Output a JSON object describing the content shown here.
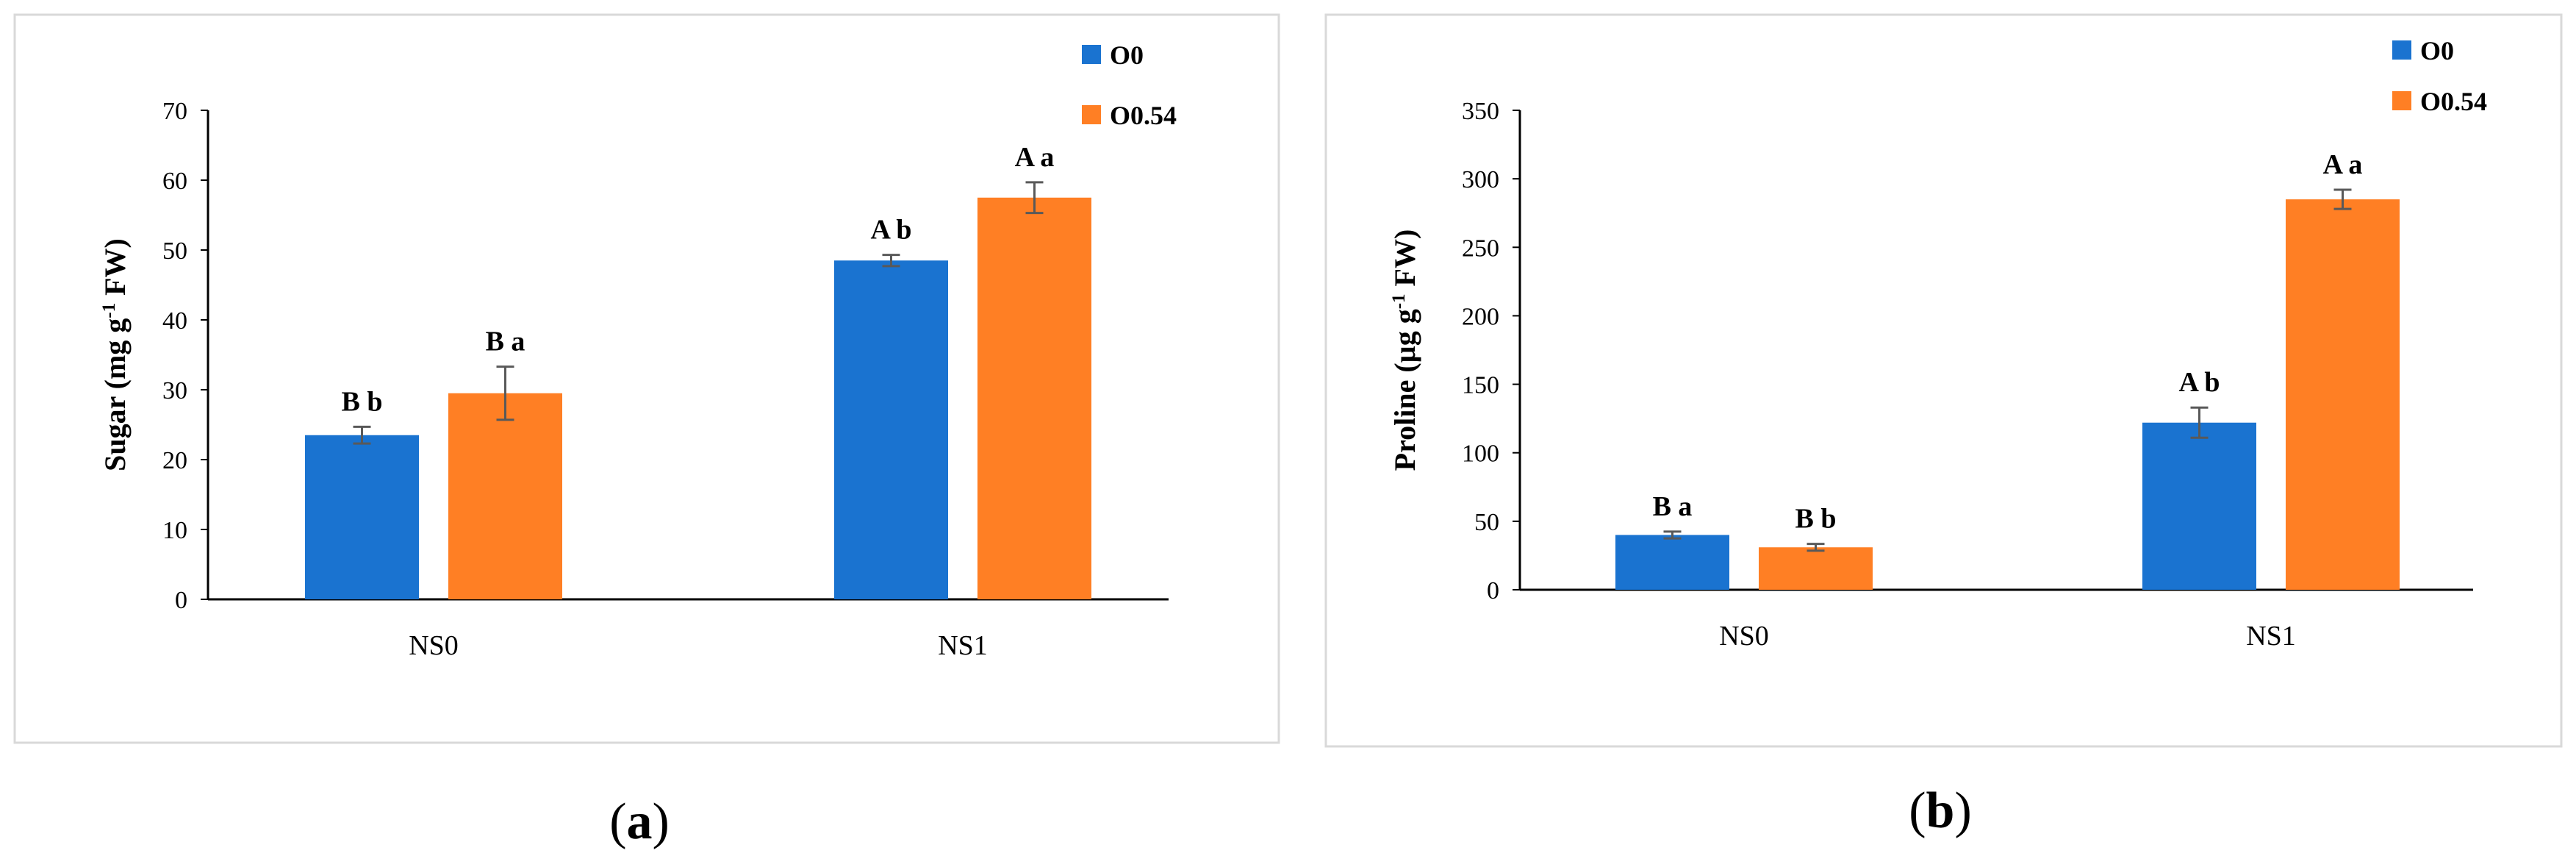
{
  "chart_data": [
    {
      "type": "bar",
      "panel": "(a)",
      "caption_letter": "a",
      "ylabel_parts": [
        "Sugar (mg g",
        "-1",
        " FW)"
      ],
      "categories": [
        "NS0",
        "NS1"
      ],
      "ylim": [
        0,
        70
      ],
      "yticks": [
        0,
        10,
        20,
        30,
        40,
        50,
        60,
        70
      ],
      "legend_position": "top-right",
      "series": [
        {
          "name": "O0",
          "color": "#1a73d0",
          "values": [
            23.5,
            48.5
          ],
          "errors": [
            1.2,
            0.8
          ],
          "labels": [
            "B b",
            "A b"
          ]
        },
        {
          "name": "O0.54",
          "color": "#ff7f24",
          "values": [
            29.5,
            57.5
          ],
          "errors": [
            3.8,
            2.2
          ],
          "labels": [
            "B a",
            "A a"
          ]
        }
      ]
    },
    {
      "type": "bar",
      "panel": "(b)",
      "caption_letter": "b",
      "ylabel_parts": [
        "Proline (µg g",
        "-1",
        " FW)"
      ],
      "categories": [
        "NS0",
        "NS1"
      ],
      "ylim": [
        0,
        350
      ],
      "yticks": [
        0,
        50,
        100,
        150,
        200,
        250,
        300,
        350
      ],
      "legend_position": "top-right",
      "series": [
        {
          "name": "O0",
          "color": "#1a73d0",
          "values": [
            40,
            122
          ],
          "errors": [
            2.5,
            11
          ],
          "labels": [
            "B a",
            "A b"
          ]
        },
        {
          "name": "O0.54",
          "color": "#ff7f24",
          "values": [
            31,
            285
          ],
          "errors": [
            2.5,
            7
          ],
          "labels": [
            "B b",
            "A a"
          ]
        }
      ]
    }
  ]
}
